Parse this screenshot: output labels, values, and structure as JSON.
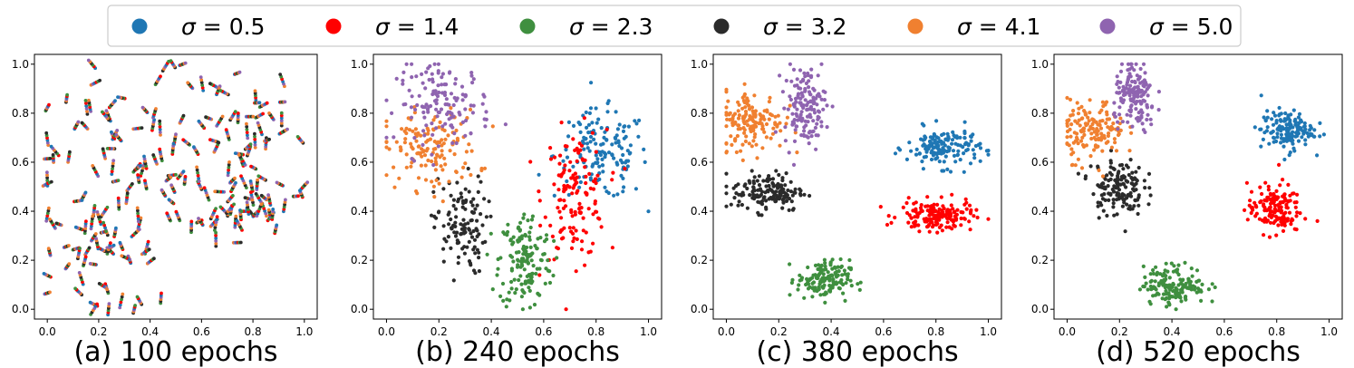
{
  "legend": {
    "entries": [
      {
        "symbol": "σ",
        "text": " = 0.5",
        "color": "#1f77b4"
      },
      {
        "symbol": "σ",
        "text": " = 1.4",
        "color": "#ff0000"
      },
      {
        "symbol": "σ",
        "text": " = 2.3",
        "color": "#3f8f3f"
      },
      {
        "symbol": "σ",
        "text": " = 3.2",
        "color": "#2b2b2b"
      },
      {
        "symbol": "σ",
        "text": " = 4.1",
        "color": "#f08030"
      },
      {
        "symbol": "σ",
        "text": " = 5.0",
        "color": "#8f64b0"
      }
    ]
  },
  "chart_data": [
    {
      "type": "scatter",
      "title": "(a) 100 epochs",
      "xlim": [
        -0.05,
        1.05
      ],
      "ylim": [
        -0.04,
        1.04
      ],
      "xticks": [
        "0.0",
        "0.2",
        "0.4",
        "0.6",
        "0.8",
        "1.0"
      ],
      "yticks": [
        "0.0",
        "0.2",
        "0.4",
        "0.6",
        "0.8",
        "1.0"
      ],
      "mixed": true,
      "clusters": [
        {
          "cx": 0.3,
          "cy": 0.55,
          "sx": 0.2,
          "sy": 0.25,
          "n": 260
        },
        {
          "cx": 0.78,
          "cy": 0.7,
          "sx": 0.12,
          "sy": 0.18,
          "n": 140
        },
        {
          "cx": 0.8,
          "cy": 0.4,
          "sx": 0.1,
          "sy": 0.06,
          "n": 90
        },
        {
          "cx": 0.22,
          "cy": 0.22,
          "sx": 0.1,
          "sy": 0.1,
          "n": 90
        }
      ],
      "note": "all six sigma classes overlapping, short streaks"
    },
    {
      "type": "scatter",
      "title": "(b) 240 epochs",
      "xlim": [
        -0.05,
        1.05
      ],
      "ylim": [
        -0.04,
        1.04
      ],
      "xticks": [
        "0.0",
        "0.2",
        "0.4",
        "0.6",
        "0.8",
        "1.0"
      ],
      "yticks": [
        "0.0",
        "0.2",
        "0.4",
        "0.6",
        "0.8",
        "1.0"
      ],
      "series": [
        {
          "name": "σ = 0.5",
          "cx": 0.82,
          "cy": 0.63,
          "sx": 0.09,
          "sy": 0.09,
          "n": 150
        },
        {
          "name": "σ = 1.4",
          "cx": 0.72,
          "cy": 0.47,
          "sx": 0.06,
          "sy": 0.13,
          "n": 140
        },
        {
          "name": "σ = 2.3",
          "cx": 0.53,
          "cy": 0.2,
          "sx": 0.05,
          "sy": 0.1,
          "n": 150
        },
        {
          "name": "σ = 3.2",
          "cx": 0.28,
          "cy": 0.34,
          "sx": 0.05,
          "sy": 0.1,
          "n": 120
        },
        {
          "name": "σ = 4.1",
          "cx": 0.17,
          "cy": 0.65,
          "sx": 0.09,
          "sy": 0.08,
          "n": 140
        },
        {
          "name": "σ = 5.0",
          "cx": 0.22,
          "cy": 0.84,
          "sx": 0.09,
          "sy": 0.08,
          "n": 140
        }
      ]
    },
    {
      "type": "scatter",
      "title": "(c) 380 epochs",
      "xlim": [
        -0.05,
        1.05
      ],
      "ylim": [
        -0.04,
        1.04
      ],
      "xticks": [
        "0.0",
        "0.2",
        "0.4",
        "0.6",
        "0.8",
        "1.0"
      ],
      "yticks": [
        "0.0",
        "0.2",
        "0.4",
        "0.6",
        "0.8",
        "1.0"
      ],
      "series": [
        {
          "name": "σ = 0.5",
          "cx": 0.83,
          "cy": 0.66,
          "sx": 0.07,
          "sy": 0.04,
          "n": 150
        },
        {
          "name": "σ = 1.4",
          "cx": 0.8,
          "cy": 0.38,
          "sx": 0.07,
          "sy": 0.03,
          "n": 160
        },
        {
          "name": "σ = 2.3",
          "cx": 0.37,
          "cy": 0.12,
          "sx": 0.05,
          "sy": 0.04,
          "n": 150
        },
        {
          "name": "σ = 3.2",
          "cx": 0.16,
          "cy": 0.48,
          "sx": 0.07,
          "sy": 0.04,
          "n": 150
        },
        {
          "name": "σ = 4.1",
          "cx": 0.1,
          "cy": 0.77,
          "sx": 0.06,
          "sy": 0.06,
          "n": 150
        },
        {
          "name": "σ = 5.0",
          "cx": 0.3,
          "cy": 0.83,
          "sx": 0.04,
          "sy": 0.08,
          "n": 150
        }
      ]
    },
    {
      "type": "scatter",
      "title": "(d) 520 epochs",
      "xlim": [
        -0.05,
        1.05
      ],
      "ylim": [
        -0.04,
        1.04
      ],
      "xticks": [
        "0.0",
        "0.2",
        "0.4",
        "0.6",
        "0.8",
        "1.0"
      ],
      "yticks": [
        "0.0",
        "0.2",
        "0.4",
        "0.6",
        "0.8",
        "1.0"
      ],
      "series": [
        {
          "name": "σ = 0.5",
          "cx": 0.84,
          "cy": 0.73,
          "sx": 0.05,
          "sy": 0.04,
          "n": 150
        },
        {
          "name": "σ = 1.4",
          "cx": 0.79,
          "cy": 0.41,
          "sx": 0.05,
          "sy": 0.05,
          "n": 150
        },
        {
          "name": "σ = 2.3",
          "cx": 0.41,
          "cy": 0.1,
          "sx": 0.06,
          "sy": 0.04,
          "n": 150
        },
        {
          "name": "σ = 3.2",
          "cx": 0.19,
          "cy": 0.5,
          "sx": 0.05,
          "sy": 0.06,
          "n": 150
        },
        {
          "name": "σ = 4.1",
          "cx": 0.1,
          "cy": 0.73,
          "sx": 0.06,
          "sy": 0.06,
          "n": 150
        },
        {
          "name": "σ = 5.0",
          "cx": 0.26,
          "cy": 0.86,
          "sx": 0.04,
          "sy": 0.07,
          "n": 150
        }
      ]
    }
  ]
}
